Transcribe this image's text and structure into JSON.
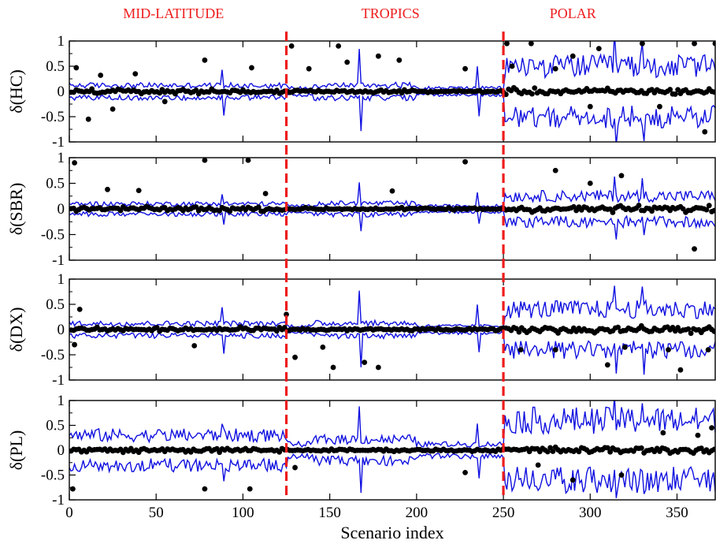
{
  "chart_data": {
    "type": "scatter",
    "layout": "four vertically stacked panels sharing the x axis",
    "xlabel": "Scenario index",
    "xlim": [
      0,
      372
    ],
    "x_ticks": [
      0,
      50,
      100,
      150,
      200,
      250,
      300,
      350
    ],
    "y_ticks": [
      1,
      0.5,
      0,
      -0.5,
      -1
    ],
    "region_labels": [
      {
        "text": "MID-LATITUDE",
        "x_center": 60
      },
      {
        "text": "TROPICS",
        "x_center": 185
      },
      {
        "text": "POLAR",
        "x_center": 290
      }
    ],
    "region_boundaries": [
      125,
      250
    ],
    "colors": {
      "band": "#1010e0",
      "points": "#000000",
      "boundary": "#ee1c1c",
      "region_text": "#ee1c1c"
    },
    "panels": [
      {
        "ylabel": "δ(HC)",
        "ylim": [
          -1,
          1
        ],
        "band": [
          0.12,
          0.07,
          0.3,
          0.5
        ],
        "outliers": [
          [
            4,
            0.47
          ],
          [
            11,
            -0.55
          ],
          [
            18,
            0.32
          ],
          [
            25,
            -0.35
          ],
          [
            38,
            0.35
          ],
          [
            55,
            -0.2
          ],
          [
            78,
            0.62
          ],
          [
            105,
            0.47
          ],
          [
            128,
            0.9
          ],
          [
            138,
            0.45
          ],
          [
            160,
            0.58
          ],
          [
            155,
            0.9
          ],
          [
            178,
            0.7
          ],
          [
            190,
            0.62
          ],
          [
            228,
            0.45
          ],
          [
            252,
            0.95
          ],
          [
            255,
            0.5
          ],
          [
            266,
            0.95
          ],
          [
            280,
            0.45
          ],
          [
            290,
            0.7
          ],
          [
            300,
            -0.3
          ],
          [
            305,
            0.85
          ],
          [
            330,
            0.95
          ],
          [
            340,
            -0.3
          ],
          [
            360,
            0.95
          ],
          [
            366,
            -0.8
          ],
          [
            372,
            0.95
          ]
        ]
      },
      {
        "ylabel": "δ(SBR)",
        "ylim": [
          -1,
          1
        ],
        "band": [
          0.1,
          0.06,
          0.12,
          0.25
        ],
        "outliers": [
          [
            3,
            0.9
          ],
          [
            22,
            0.38
          ],
          [
            40,
            0.36
          ],
          [
            78,
            0.95
          ],
          [
            103,
            0.95
          ],
          [
            113,
            0.3
          ],
          [
            186,
            0.35
          ],
          [
            228,
            0.92
          ],
          [
            280,
            0.75
          ],
          [
            300,
            0.5
          ],
          [
            318,
            0.65
          ],
          [
            360,
            -0.78
          ]
        ]
      },
      {
        "ylabel": "δ(DX)",
        "ylim": [
          -1,
          1
        ],
        "band": [
          0.12,
          0.07,
          0.15,
          0.4
        ],
        "outliers": [
          [
            6,
            0.4
          ],
          [
            3,
            -0.3
          ],
          [
            72,
            -0.32
          ],
          [
            125,
            0.3
          ],
          [
            130,
            -0.55
          ],
          [
            146,
            -0.35
          ],
          [
            152,
            -0.75
          ],
          [
            170,
            -0.65
          ],
          [
            178,
            -0.75
          ],
          [
            260,
            -0.4
          ],
          [
            280,
            -0.4
          ],
          [
            310,
            -0.7
          ],
          [
            320,
            -0.35
          ],
          [
            345,
            -0.4
          ],
          [
            352,
            -0.8
          ],
          [
            368,
            -0.4
          ]
        ]
      },
      {
        "ylabel": "δ(PL)",
        "ylim": [
          -1,
          1
        ],
        "band": [
          0.3,
          0.12,
          0.25,
          0.6
        ],
        "outliers": [
          [
            2,
            -0.78
          ],
          [
            78,
            -0.78
          ],
          [
            104,
            -0.78
          ],
          [
            130,
            -0.35
          ],
          [
            228,
            -0.45
          ],
          [
            270,
            -0.3
          ],
          [
            290,
            -0.6
          ],
          [
            318,
            -0.5
          ],
          [
            342,
            0.35
          ],
          [
            362,
            0.3
          ],
          [
            370,
            0.45
          ]
        ]
      }
    ]
  }
}
